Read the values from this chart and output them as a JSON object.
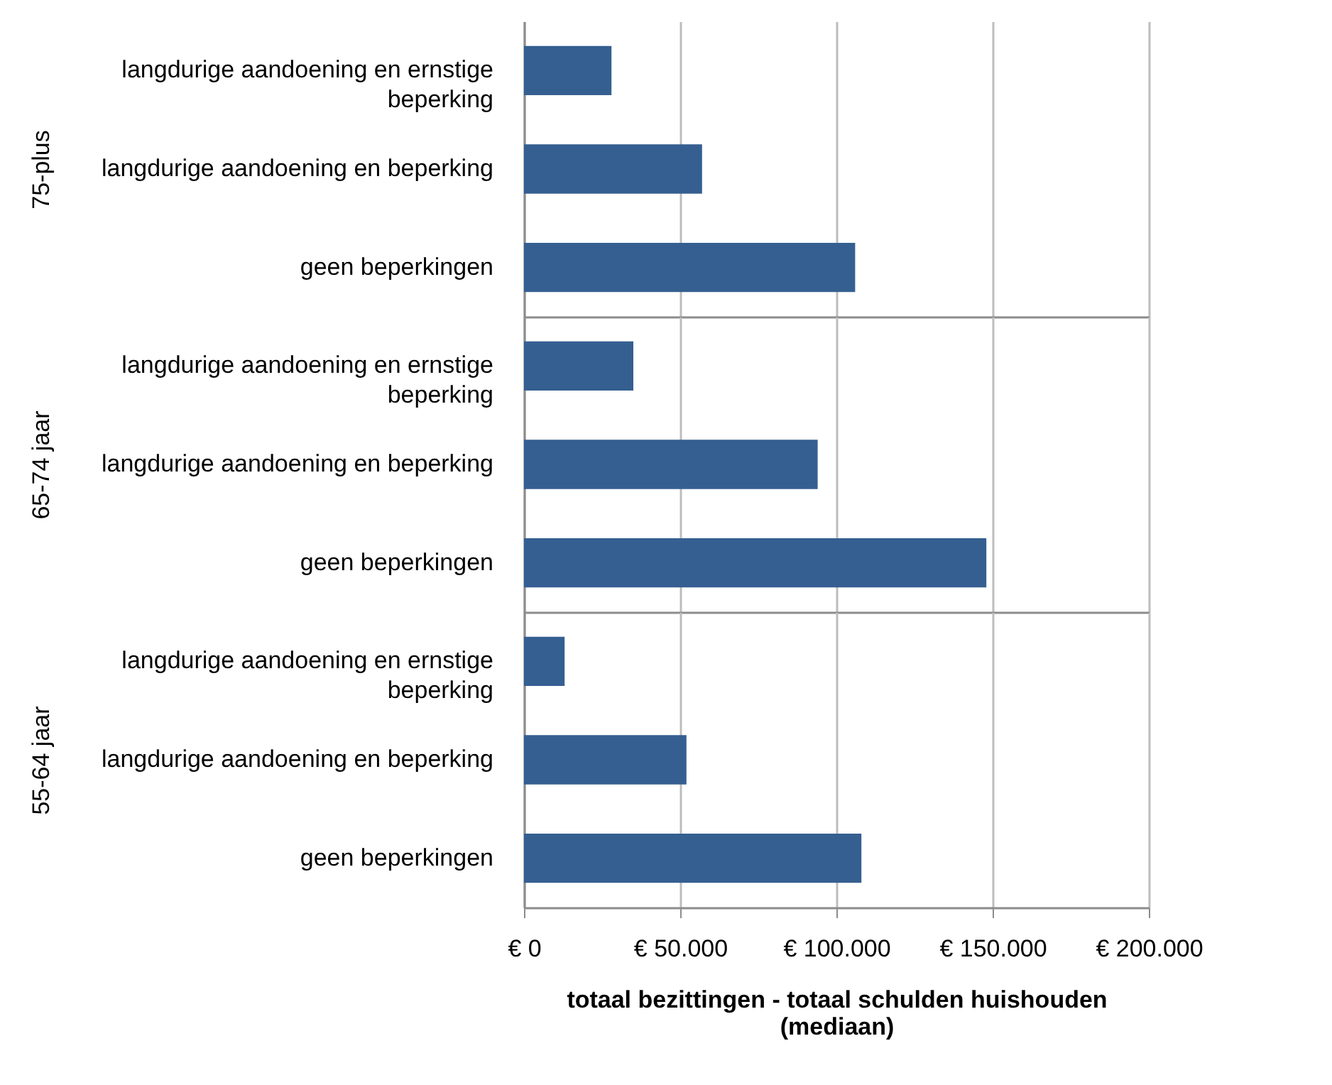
{
  "chart_data": [
    {
      "type": "bar",
      "orientation": "horizontal",
      "ylabel": "75-plus",
      "categories": [
        "langdurige aandoening en ernstige beperking",
        "langdurige aandoening en beperking",
        "geen beperkingen"
      ],
      "values": [
        28000,
        57000,
        106000
      ],
      "color": "#355f91",
      "xlim": [
        0,
        200000
      ],
      "xticks": [
        {
          "value": 0,
          "label": null
        },
        {
          "value": 50000,
          "label": null
        },
        {
          "value": 100000,
          "label": null
        },
        {
          "value": 150000,
          "label": null
        },
        {
          "value": 200000,
          "label": null
        }
      ],
      "grid": "x",
      "tick_labels": "y"
    },
    {
      "type": "bar",
      "orientation": "horizontal",
      "ylabel": "65-74 jaar",
      "categories": [
        "langdurige aandoening en ernstige beperking",
        "langdurige aandoening en beperking",
        "geen beperkingen"
      ],
      "values": [
        35000,
        94000,
        148000
      ],
      "color": "#355f91",
      "xlim": [
        0,
        200000
      ],
      "xticks": [
        {
          "value": 0,
          "label": null
        },
        {
          "value": 50000,
          "label": null
        },
        {
          "value": 100000,
          "label": null
        },
        {
          "value": 150000,
          "label": null
        },
        {
          "value": 200000,
          "label": null
        }
      ],
      "grid": "x",
      "tick_labels": "y"
    },
    {
      "type": "bar",
      "orientation": "horizontal",
      "ylabel": "55-64 jaar",
      "xlabel": "totaal bezittingen - totaal schulden huishouden (mediaan)",
      "categories": [
        "langdurige aandoening en ernstige beperking",
        "langdurige aandoening en beperking",
        "geen beperkingen"
      ],
      "values": [
        13000,
        52000,
        108000
      ],
      "color": "#355f91",
      "xlim": [
        0,
        200000
      ],
      "xticks": [
        {
          "value": 0,
          "label": "€ 0"
        },
        {
          "value": 50000,
          "label": "€ 50.000"
        },
        {
          "value": 100000,
          "label": "€ 100.000"
        },
        {
          "value": 150000,
          "label": "€ 150.000"
        },
        {
          "value": 200000,
          "label": "€ 200.000"
        }
      ],
      "grid": "x"
    }
  ]
}
